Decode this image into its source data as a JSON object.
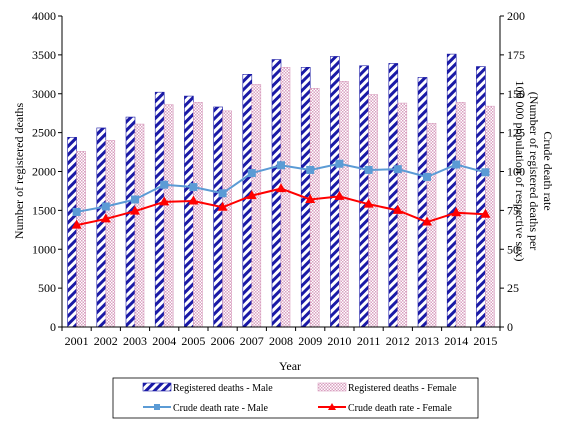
{
  "chart_data": {
    "type": "bar",
    "x": [
      2001,
      2002,
      2003,
      2004,
      2005,
      2006,
      2007,
      2008,
      2009,
      2010,
      2011,
      2012,
      2013,
      2014,
      2015
    ],
    "xlabel": "Year",
    "ylabel_left": "Number of registered deaths",
    "ylabel_right_line1": "Crude death rate",
    "ylabel_right_line2": "(Number of registered deaths per",
    "ylabel_right_line3": "100 000 population of respective sex)",
    "ylim_left": [
      0,
      4000
    ],
    "yticks_left": [
      0,
      500,
      1000,
      1500,
      2000,
      2500,
      3000,
      3500,
      4000
    ],
    "ylim_right": [
      0,
      200
    ],
    "yticks_right": [
      0,
      25,
      50,
      75,
      100,
      125,
      150,
      175,
      200
    ],
    "grid": false,
    "legend_position": "bottom",
    "bar_series": [
      {
        "name": "Registered deaths - Male",
        "color": "#1a1aa6",
        "pattern": "diagonal-stripes",
        "values": [
          2440,
          2560,
          2700,
          3020,
          2970,
          2830,
          3250,
          3440,
          3340,
          3480,
          3360,
          3390,
          3210,
          3510,
          3350
        ]
      },
      {
        "name": "Registered deaths - Female",
        "color": "#d9a0c0",
        "pattern": "dots",
        "values": [
          2260,
          2400,
          2610,
          2860,
          2890,
          2780,
          3120,
          3340,
          3070,
          3160,
          2990,
          2880,
          2620,
          2890,
          2840
        ]
      }
    ],
    "line_series": [
      {
        "name": "Crude death rate - Male",
        "color": "#5b9bd5",
        "marker": "square",
        "axis": "right",
        "values": [
          74,
          77.5,
          82,
          91.5,
          90,
          86,
          99,
          104,
          101,
          105,
          101,
          101.5,
          96.5,
          104.5,
          99.5
        ]
      },
      {
        "name": "Crude death rate - Female",
        "color": "#ff0000",
        "marker": "triangle",
        "axis": "right",
        "values": [
          65.5,
          69.5,
          74.5,
          80.5,
          81,
          77,
          84.5,
          89,
          82,
          84,
          79,
          75,
          67.5,
          73.5,
          72.5
        ]
      }
    ]
  }
}
